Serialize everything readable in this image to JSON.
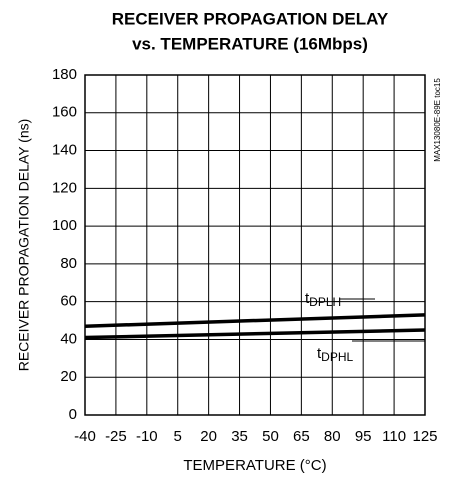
{
  "chart_data": {
    "type": "line",
    "title": "RECEIVER PROPAGATION DELAY",
    "subtitle": "vs. TEMPERATURE (16Mbps)",
    "x_label": "TEMPERATURE (°C)",
    "y_label": "RECEIVER PROPAGATION DELAY (ns)",
    "annotation": "MAX13080E-89E toc15",
    "x": [
      -40,
      125
    ],
    "series": [
      {
        "name": "tDPLH",
        "color": "#000000",
        "values": [
          47,
          53
        ]
      },
      {
        "name": "tDPHL",
        "color": "#000000",
        "values": [
          41,
          45
        ]
      }
    ],
    "xlim": [
      -40,
      125
    ],
    "xticks": [
      -40,
      -25,
      -10,
      5,
      20,
      35,
      50,
      65,
      80,
      95,
      110,
      125
    ],
    "ylim": [
      0,
      180
    ],
    "yticks": [
      0,
      20,
      40,
      60,
      80,
      100,
      120,
      140,
      160,
      180
    ],
    "grid": true
  }
}
